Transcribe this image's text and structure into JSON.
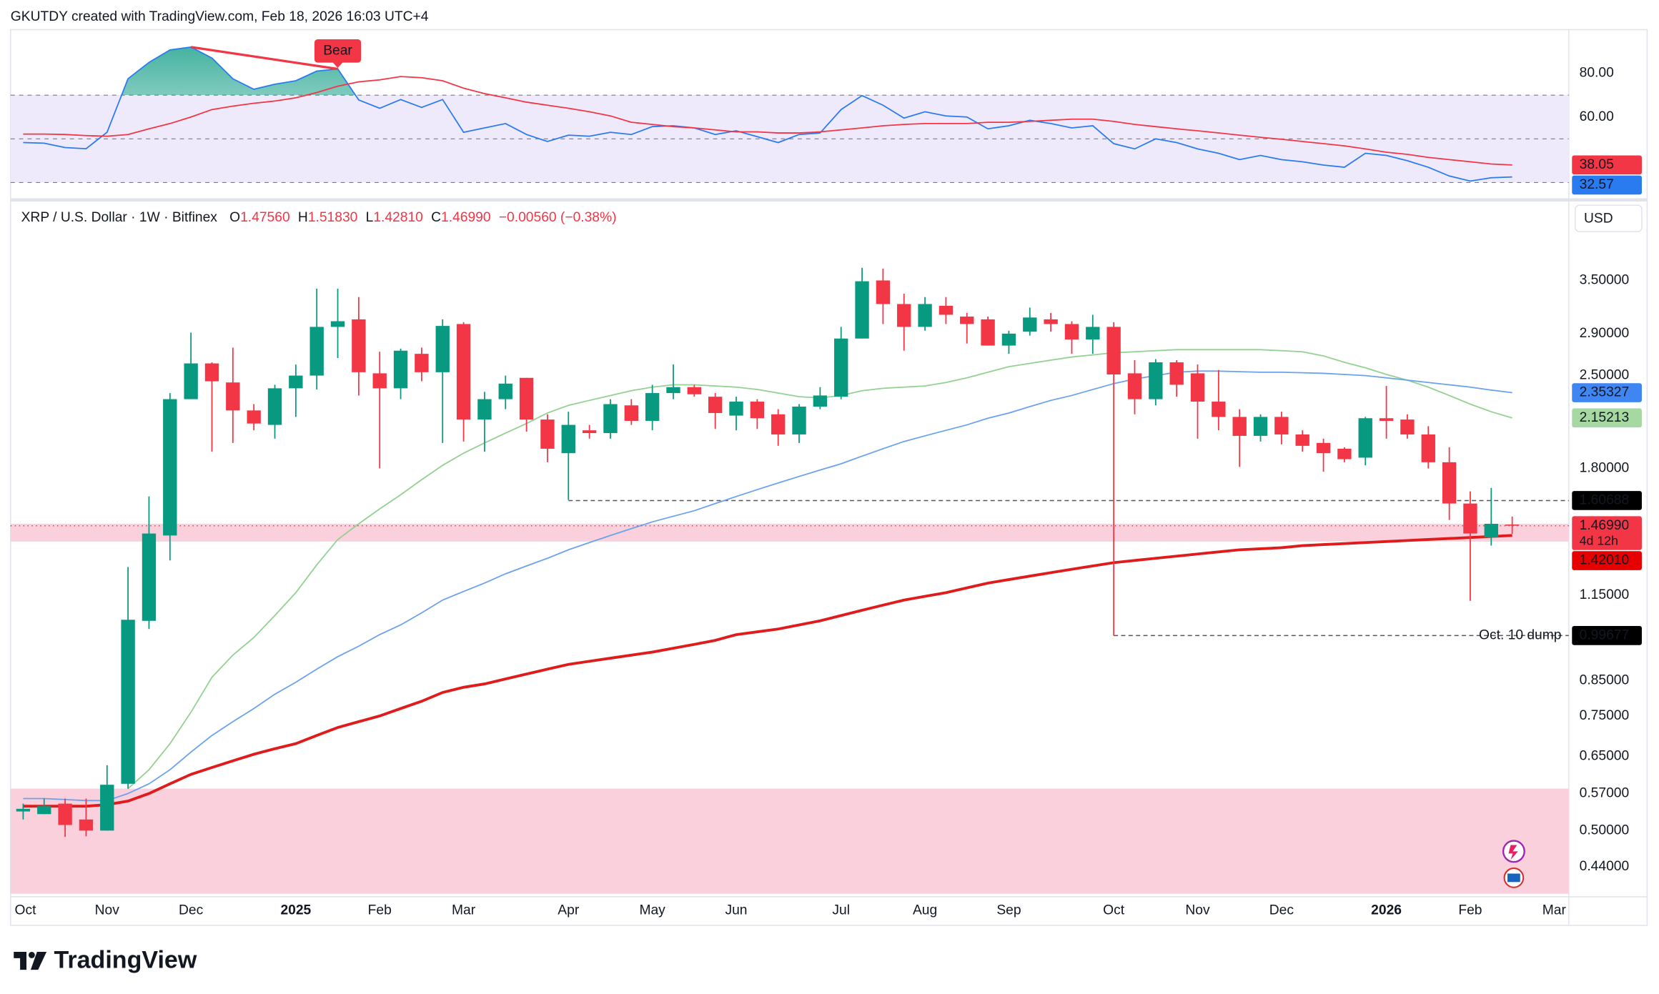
{
  "header": {
    "attribution": "GKUTDY created with TradingView.com, Feb 18, 2026 16:03 UTC+4",
    "logo": "TradingView",
    "currency": "USD"
  },
  "chart_data": [
    {
      "type": "line",
      "ylim": [
        24,
        100
      ],
      "yticks": [
        {
          "value": 80,
          "label": "80.00"
        },
        {
          "value": 60,
          "label": "60.00"
        }
      ],
      "band": [
        30,
        70
      ],
      "band_color": "#efeafb",
      "levels": [
        70,
        50,
        30
      ],
      "overbought_fill": "#089981",
      "series": [
        {
          "color": "#2a7bf0",
          "values": [
            48.3,
            48,
            46,
            45.5,
            53,
            77.5,
            85,
            90.7,
            92,
            87,
            77.5,
            72.7,
            75,
            76.6,
            81,
            82,
            67.8,
            64,
            68,
            64.4,
            68,
            53,
            55,
            57,
            52,
            48.8,
            51.7,
            51.2,
            53,
            52,
            55.6,
            56,
            55,
            52,
            53.7,
            51,
            48.3,
            52,
            52.7,
            63.4,
            69.8,
            65.4,
            59.5,
            62.4,
            60.5,
            60,
            54.6,
            56,
            58.5,
            57,
            55,
            56,
            47.8,
            45.4,
            50,
            48.3,
            45.4,
            43.4,
            40.5,
            42.4,
            40.5,
            39.5,
            38,
            37,
            43.4,
            42.4,
            40,
            37,
            33,
            30.7,
            32.2,
            32.57,
            null,
            null
          ]
        },
        {
          "color": "#f23645",
          "values": [
            52.2,
            52.2,
            52,
            51.5,
            51.2,
            52,
            54.6,
            57,
            60,
            63.4,
            65,
            66.3,
            67.3,
            68.8,
            71.2,
            74.1,
            76.1,
            77,
            78.5,
            78,
            76.6,
            73.2,
            70.7,
            68.8,
            66.8,
            65.4,
            64,
            62.4,
            60.5,
            57.6,
            56.6,
            55.6,
            55,
            54.1,
            53.2,
            53.2,
            52.7,
            52.7,
            53.2,
            54.1,
            55,
            56,
            56.6,
            57,
            57,
            57,
            57.6,
            57.6,
            58,
            58.5,
            59,
            59,
            58,
            56.6,
            55.6,
            54.6,
            53.7,
            52.7,
            51.7,
            50.7,
            49.8,
            48.8,
            47.8,
            46.8,
            45.4,
            43.9,
            42.9,
            41.5,
            40.5,
            39.5,
            38.5,
            38.05,
            null,
            null
          ]
        }
      ],
      "divergence": {
        "label": "Bear",
        "x": [
          8,
          15
        ],
        "color": "#f23645"
      },
      "last_labels": [
        {
          "value": 38.05,
          "label": "38.05",
          "bg": "#f23645",
          "fg": "#ffffff"
        },
        {
          "value": 32.57,
          "label": "32.57",
          "bg": "#2a7bf0",
          "fg": "#ffffff"
        }
      ]
    },
    {
      "type": "candlestick",
      "title": "XRP / U.S. Dollar · 1W · Bitfinex",
      "ohlc_legend": [
        {
          "label": "O",
          "value": "1.47560"
        },
        {
          "label": "H",
          "value": "1.51830"
        },
        {
          "label": "L",
          "value": "1.42810"
        },
        {
          "label": "C",
          "value": "1.46990"
        }
      ],
      "change": "−0.00560 (−0.38%)",
      "log_scale": true,
      "ylim": [
        0.4,
        4.5
      ],
      "xlim": [
        -0.6,
        73.7
      ],
      "yticks": [
        {
          "value": 3.5,
          "label": "3.50000"
        },
        {
          "value": 2.9,
          "label": "2.90000"
        },
        {
          "value": 2.5,
          "label": "2.50000"
        },
        {
          "value": 1.8,
          "label": "1.80000"
        },
        {
          "value": 1.15,
          "label": "1.15000"
        },
        {
          "value": 0.85,
          "label": "0.85000"
        },
        {
          "value": 0.75,
          "label": "0.75000"
        },
        {
          "value": 0.65,
          "label": "0.65000"
        },
        {
          "value": 0.57,
          "label": "0.57000"
        },
        {
          "value": 0.5,
          "label": "0.50000"
        },
        {
          "value": 0.44,
          "label": "0.44000"
        }
      ],
      "categories": [
        "Oct",
        null,
        null,
        null,
        "Nov",
        null,
        null,
        null,
        "Dec",
        null,
        null,
        null,
        null,
        "2025",
        null,
        null,
        null,
        "Feb",
        null,
        null,
        null,
        "Mar",
        null,
        null,
        null,
        null,
        "Apr",
        null,
        null,
        null,
        "May",
        null,
        null,
        null,
        "Jun",
        null,
        null,
        null,
        null,
        "Jul",
        null,
        null,
        null,
        "Aug",
        null,
        null,
        null,
        "Sep",
        null,
        null,
        null,
        null,
        "Oct",
        null,
        null,
        null,
        "Nov",
        null,
        null,
        null,
        "Dec",
        null,
        null,
        null,
        null,
        "2026",
        null,
        null,
        null,
        "Feb",
        null,
        null,
        null,
        "Mar"
      ],
      "open": [
        0.535,
        0.53,
        0.55,
        0.52,
        0.5,
        0.59,
        1.05,
        1.42,
        2.3,
        2.61,
        2.44,
        2.21,
        2.1,
        2.39,
        2.5,
        2.97,
        3.05,
        2.52,
        2.39,
        2.7,
        2.53,
        3.0,
        2.14,
        2.3,
        2.48,
        2.14,
        1.9,
        2.06,
        2.04,
        2.25,
        2.13,
        2.35,
        2.4,
        2.32,
        2.17,
        2.28,
        2.18,
        2.03,
        2.24,
        2.32,
        2.85,
        3.5,
        3.22,
        2.97,
        3.2,
        3.08,
        3.05,
        2.78,
        2.92,
        3.05,
        3.0,
        2.84,
        2.97,
        2.52,
        2.3,
        2.62,
        2.52,
        2.28,
        2.16,
        2.02,
        2.16,
        2.03,
        1.97,
        1.93,
        1.87,
        2.15,
        2.14,
        2.03,
        1.84,
        1.59,
        1.41,
        1.4756,
        null,
        null
      ],
      "high": [
        0.55,
        0.56,
        0.56,
        0.56,
        0.63,
        1.27,
        1.63,
        2.35,
        2.91,
        2.62,
        2.76,
        2.26,
        2.42,
        2.6,
        3.4,
        3.4,
        3.3,
        2.72,
        2.75,
        2.76,
        3.05,
        3.02,
        2.36,
        2.5,
        2.48,
        2.18,
        2.2,
        2.1,
        2.3,
        2.3,
        2.42,
        2.6,
        2.42,
        2.35,
        2.32,
        2.3,
        2.22,
        2.26,
        2.4,
        2.97,
        3.66,
        3.65,
        3.34,
        3.3,
        3.3,
        3.12,
        3.08,
        2.93,
        3.18,
        3.12,
        3.03,
        3.1,
        3.02,
        2.64,
        2.65,
        2.64,
        2.6,
        2.55,
        2.22,
        2.18,
        2.2,
        2.06,
        2.0,
        1.94,
        2.16,
        2.41,
        2.18,
        2.09,
        1.94,
        1.66,
        1.68,
        1.5183,
        null,
        null
      ],
      "low": [
        0.52,
        0.53,
        0.489,
        0.49,
        0.5,
        0.58,
        1.02,
        1.3,
        2.3,
        1.91,
        1.97,
        2.06,
        2.0,
        2.16,
        2.38,
        2.66,
        2.33,
        1.8,
        2.3,
        2.45,
        1.97,
        1.98,
        1.91,
        2.22,
        2.05,
        1.84,
        1.61,
        2.0,
        2.0,
        2.1,
        2.06,
        2.3,
        2.32,
        2.07,
        2.06,
        2.07,
        1.95,
        1.97,
        2.22,
        2.3,
        2.85,
        3.0,
        2.73,
        2.93,
        3.0,
        2.8,
        2.78,
        2.7,
        2.88,
        2.92,
        2.7,
        2.7,
        0.99677,
        2.18,
        2.25,
        2.32,
        2.0,
        2.06,
        1.81,
        1.98,
        1.96,
        1.91,
        1.78,
        1.84,
        1.82,
        2.0,
        2.0,
        1.8,
        1.5,
        1.127,
        1.37,
        1.4281,
        null,
        null
      ],
      "close": [
        0.54,
        0.545,
        0.51,
        0.5,
        0.588,
        1.054,
        1.43,
        2.3,
        2.61,
        2.45,
        2.21,
        2.11,
        2.39,
        2.5,
        2.97,
        3.03,
        2.53,
        2.39,
        2.73,
        2.53,
        2.98,
        2.14,
        2.3,
        2.43,
        2.14,
        1.93,
        2.1,
        2.04,
        2.26,
        2.13,
        2.35,
        2.4,
        2.34,
        2.19,
        2.28,
        2.15,
        2.03,
        2.24,
        2.33,
        2.85,
        3.49,
        3.22,
        2.97,
        3.22,
        3.1,
        3.0,
        2.78,
        2.9,
        3.07,
        3.0,
        2.84,
        2.97,
        2.51,
        2.3,
        2.62,
        2.42,
        2.28,
        2.16,
        2.02,
        2.16,
        2.03,
        1.95,
        1.9,
        1.86,
        2.15,
        2.13,
        2.03,
        1.84,
        1.59,
        1.43,
        1.48,
        1.4699,
        null,
        null
      ],
      "up_color": "#089981",
      "down_color": "#f23645",
      "series": [
        {
          "color": "#93d190",
          "width": 1.2,
          "values": [
            null,
            null,
            null,
            null,
            null,
            0.58,
            0.62,
            0.68,
            0.76,
            0.86,
            0.93,
            0.99,
            1.07,
            1.16,
            1.28,
            1.4,
            1.48,
            1.56,
            1.64,
            1.73,
            1.82,
            1.9,
            1.97,
            2.04,
            2.11,
            2.19,
            2.25,
            2.29,
            2.33,
            2.37,
            2.4,
            2.42,
            2.42,
            2.41,
            2.4,
            2.38,
            2.35,
            2.32,
            2.31,
            2.33,
            2.37,
            2.39,
            2.4,
            2.41,
            2.44,
            2.48,
            2.53,
            2.58,
            2.61,
            2.64,
            2.67,
            2.69,
            2.71,
            2.72,
            2.73,
            2.74,
            2.74,
            2.74,
            2.74,
            2.74,
            2.73,
            2.72,
            2.68,
            2.62,
            2.57,
            2.51,
            2.46,
            2.4,
            2.33,
            2.26,
            2.2,
            2.15213,
            null,
            null
          ]
        },
        {
          "color": "#6aa2ee",
          "width": 1.2,
          "values": [
            0.56,
            0.56,
            0.558,
            0.556,
            0.556,
            0.57,
            0.59,
            0.62,
            0.66,
            0.7,
            0.735,
            0.77,
            0.81,
            0.845,
            0.885,
            0.925,
            0.96,
            1.0,
            1.035,
            1.08,
            1.13,
            1.165,
            1.2,
            1.24,
            1.275,
            1.31,
            1.35,
            1.385,
            1.42,
            1.455,
            1.49,
            1.52,
            1.55,
            1.59,
            1.63,
            1.67,
            1.71,
            1.75,
            1.79,
            1.83,
            1.88,
            1.93,
            1.98,
            2.02,
            2.06,
            2.1,
            2.15,
            2.19,
            2.24,
            2.29,
            2.33,
            2.38,
            2.43,
            2.47,
            2.5,
            2.53,
            2.54,
            2.54,
            2.535,
            2.53,
            2.53,
            2.525,
            2.52,
            2.51,
            2.5,
            2.48,
            2.46,
            2.44,
            2.42,
            2.4,
            2.375,
            2.35327,
            null,
            null
          ]
        },
        {
          "color": "#e01b1b",
          "width": 2.6,
          "values": [
            0.545,
            0.545,
            0.545,
            0.545,
            0.548,
            0.555,
            0.57,
            0.59,
            0.61,
            0.625,
            0.64,
            0.655,
            0.668,
            0.68,
            0.7,
            0.72,
            0.735,
            0.75,
            0.77,
            0.79,
            0.815,
            0.83,
            0.84,
            0.855,
            0.87,
            0.885,
            0.9,
            0.91,
            0.92,
            0.93,
            0.94,
            0.953,
            0.966,
            0.98,
            1.0,
            1.01,
            1.02,
            1.035,
            1.05,
            1.07,
            1.09,
            1.11,
            1.13,
            1.145,
            1.16,
            1.18,
            1.2,
            1.215,
            1.23,
            1.245,
            1.26,
            1.275,
            1.29,
            1.3,
            1.31,
            1.32,
            1.33,
            1.34,
            1.35,
            1.355,
            1.36,
            1.37,
            1.375,
            1.38,
            1.385,
            1.39,
            1.395,
            1.4,
            1.405,
            1.41,
            1.415,
            1.4201,
            null,
            null
          ]
        }
      ],
      "zones": [
        {
          "range": [
            1.39,
            1.48
          ],
          "color": "#f9d0dc"
        },
        {
          "range": [
            0.4,
            0.58
          ],
          "color": "#f9d0dc"
        }
      ],
      "levels": [
        {
          "value": 1.60688,
          "label": "1.60688",
          "from": 26
        },
        {
          "value": 0.99677,
          "label": "0.99677",
          "from": 52,
          "text": "Oct. 10 dump"
        }
      ],
      "price_labels": [
        {
          "value": 2.35327,
          "label": "2.35327",
          "bg": "#3f86f2",
          "fg": "#ffffff"
        },
        {
          "value": 2.15213,
          "label": "2.15213",
          "bg": "#a6d9a2",
          "fg": "#131722"
        },
        {
          "value": 1.4699,
          "label": "1.46990",
          "sub": "4d 12h",
          "bg": "#f23645",
          "fg": "#ffffff"
        },
        {
          "value": 1.4201,
          "label": "1.42010",
          "bg": "#e60000",
          "fg": "#ffffff"
        }
      ]
    }
  ]
}
